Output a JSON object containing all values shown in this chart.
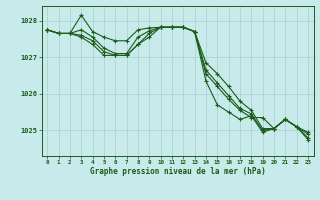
{
  "background_color": "#c8eaea",
  "grid_color": "#b0d4d4",
  "line_color": "#1a5c1a",
  "title": "Graphe pression niveau de la mer (hPa)",
  "xlim": [
    -0.5,
    23.5
  ],
  "ylim": [
    1024.3,
    1028.4
  ],
  "yticks": [
    1025,
    1026,
    1027,
    1028
  ],
  "xticks": [
    0,
    1,
    2,
    3,
    4,
    5,
    6,
    7,
    8,
    9,
    10,
    11,
    12,
    13,
    14,
    15,
    16,
    17,
    18,
    19,
    20,
    21,
    22,
    23
  ],
  "series": [
    [
      1027.75,
      1027.65,
      1027.65,
      1028.15,
      1027.7,
      1027.55,
      1027.45,
      1027.45,
      1027.75,
      1027.8,
      1027.82,
      1027.82,
      1027.82,
      1027.7,
      1026.55,
      1026.2,
      1025.85,
      1025.55,
      1025.35,
      1025.35,
      1025.05,
      1025.3,
      1025.1,
      1024.9
    ],
    [
      1027.75,
      1027.65,
      1027.65,
      1027.75,
      1027.55,
      1027.25,
      1027.1,
      1027.1,
      1027.55,
      1027.72,
      1027.82,
      1027.82,
      1027.82,
      1027.7,
      1026.85,
      1026.55,
      1026.2,
      1025.8,
      1025.55,
      1025.05,
      1025.05,
      1025.3,
      1025.1,
      1024.95
    ],
    [
      1027.75,
      1027.65,
      1027.65,
      1027.6,
      1027.45,
      1027.15,
      1027.05,
      1027.05,
      1027.35,
      1027.65,
      1027.82,
      1027.82,
      1027.82,
      1027.7,
      1026.65,
      1026.3,
      1025.95,
      1025.6,
      1025.45,
      1025.0,
      1025.05,
      1025.3,
      1025.1,
      1024.8
    ],
    [
      1027.75,
      1027.65,
      1027.65,
      1027.55,
      1027.35,
      1027.05,
      1027.05,
      1027.05,
      1027.35,
      1027.55,
      1027.82,
      1027.82,
      1027.82,
      1027.7,
      1026.35,
      1025.7,
      1025.5,
      1025.3,
      1025.4,
      1024.95,
      1025.05,
      1025.3,
      1025.1,
      1024.75
    ]
  ]
}
